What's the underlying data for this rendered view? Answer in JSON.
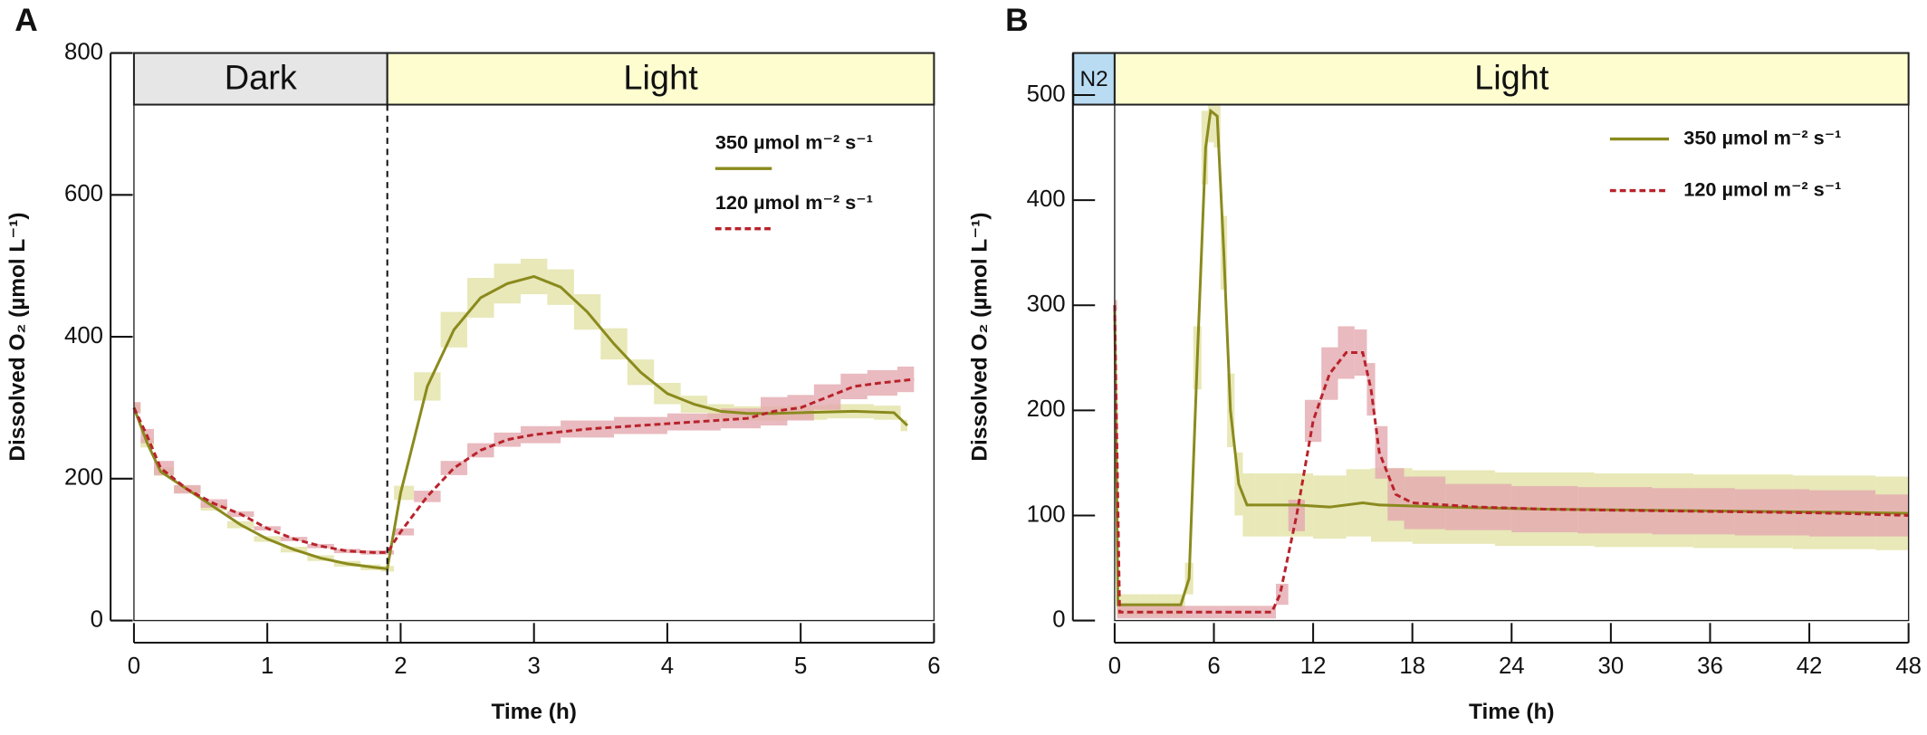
{
  "chart_data": [
    {
      "type": "line",
      "panel": "A",
      "xlabel": "Time (h)",
      "ylabel": "Dissolved O₂ (µmol L⁻¹)",
      "xlim": [
        0,
        6
      ],
      "xticks": [
        0,
        1,
        2,
        3,
        4,
        5,
        6
      ],
      "ylim": [
        0,
        800
      ],
      "yticks": [
        0,
        200,
        400,
        600,
        800
      ],
      "vline": 1.9,
      "regions": [
        {
          "label": "Dark",
          "start": 0,
          "end": 1.9,
          "color": "#e6e6e6"
        },
        {
          "label": "Light",
          "start": 1.9,
          "end": 6,
          "color": "#fdfdd0"
        }
      ],
      "series": [
        {
          "name": "350 µmol m⁻² s⁻¹",
          "color": "#8a8a1e",
          "band_color": "#e2e2a6",
          "dash": false,
          "x": [
            0,
            0.1,
            0.2,
            0.4,
            0.6,
            0.8,
            1.0,
            1.2,
            1.4,
            1.6,
            1.8,
            1.9,
            2.0,
            2.2,
            2.4,
            2.6,
            2.8,
            3.0,
            3.2,
            3.4,
            3.6,
            3.8,
            4.0,
            4.2,
            4.4,
            4.6,
            4.8,
            5.0,
            5.4,
            5.7,
            5.8
          ],
          "values": [
            300,
            250,
            210,
            185,
            160,
            135,
            115,
            100,
            88,
            80,
            75,
            73,
            180,
            330,
            410,
            455,
            475,
            485,
            470,
            435,
            390,
            350,
            320,
            305,
            295,
            292,
            292,
            293,
            295,
            293,
            275
          ],
          "errors": [
            6,
            6,
            6,
            5,
            5,
            5,
            4,
            4,
            4,
            4,
            4,
            4,
            10,
            20,
            25,
            28,
            28,
            25,
            25,
            25,
            22,
            18,
            15,
            12,
            10,
            10,
            10,
            10,
            10,
            10,
            8
          ]
        },
        {
          "name": "120 µmol m⁻² s⁻¹",
          "color": "#b8232b",
          "band_color": "#e4a9af",
          "dash": true,
          "x": [
            0,
            0.1,
            0.2,
            0.4,
            0.6,
            0.8,
            1.0,
            1.2,
            1.4,
            1.6,
            1.8,
            1.9,
            2.0,
            2.2,
            2.4,
            2.6,
            2.8,
            3.0,
            3.4,
            3.8,
            4.2,
            4.6,
            4.8,
            5.0,
            5.2,
            5.4,
            5.6,
            5.85
          ],
          "values": [
            300,
            260,
            215,
            185,
            165,
            150,
            130,
            115,
            105,
            98,
            96,
            96,
            125,
            175,
            215,
            240,
            255,
            262,
            270,
            275,
            280,
            285,
            295,
            300,
            315,
            330,
            335,
            340
          ],
          "errors": [
            8,
            10,
            10,
            6,
            6,
            4,
            3,
            3,
            3,
            3,
            3,
            3,
            5,
            8,
            10,
            10,
            10,
            12,
            12,
            12,
            12,
            14,
            20,
            18,
            18,
            18,
            18,
            18
          ]
        }
      ]
    },
    {
      "type": "line",
      "panel": "B",
      "xlabel": "Time (h)",
      "ylabel": "Dissolved O₂ (µmol L⁻¹)",
      "xlim": [
        0,
        48
      ],
      "xticks": [
        0,
        6,
        12,
        18,
        24,
        30,
        36,
        42,
        48
      ],
      "ylim": [
        0,
        540
      ],
      "yticks": [
        0,
        100,
        200,
        300,
        400,
        500
      ],
      "regions": [
        {
          "label": "N2",
          "start": -2.5,
          "end": 0,
          "color": "#b9dcf3"
        },
        {
          "label": "Light",
          "start": 0,
          "end": 48,
          "color": "#fdfdd0"
        }
      ],
      "series": [
        {
          "name": "350 µmol m⁻² s⁻¹",
          "color": "#8a8a1e",
          "band_color": "#e2e2a6",
          "dash": false,
          "x": [
            0,
            0.2,
            1,
            2,
            3,
            4,
            4.5,
            5,
            5.5,
            5.8,
            6.2,
            6.6,
            7,
            7.5,
            8,
            9,
            11,
            13,
            15,
            16,
            20,
            26,
            32,
            38,
            44,
            48
          ],
          "values": [
            300,
            15,
            15,
            15,
            15,
            15,
            40,
            250,
            450,
            485,
            480,
            350,
            200,
            130,
            110,
            110,
            110,
            108,
            112,
            110,
            108,
            106,
            105,
            104,
            103,
            102
          ],
          "errors": [
            5,
            10,
            10,
            10,
            10,
            10,
            15,
            30,
            35,
            30,
            30,
            35,
            35,
            30,
            30,
            30,
            30,
            30,
            32,
            35,
            35,
            35,
            35,
            35,
            35,
            35
          ]
        },
        {
          "name": "120 µmol m⁻² s⁻¹",
          "color": "#b8232b",
          "band_color": "#e4a9af",
          "dash": true,
          "x": [
            0,
            0.3,
            2,
            5,
            8,
            9.5,
            10,
            11,
            12,
            13,
            14,
            15,
            15.5,
            16,
            17,
            18,
            22,
            26,
            30,
            35,
            40,
            44,
            48
          ],
          "values": [
            300,
            8,
            8,
            8,
            8,
            8,
            25,
            100,
            190,
            235,
            255,
            255,
            220,
            160,
            120,
            112,
            108,
            106,
            105,
            104,
            103,
            102,
            100
          ],
          "errors": [
            5,
            6,
            6,
            6,
            6,
            6,
            10,
            15,
            20,
            25,
            25,
            22,
            25,
            25,
            25,
            25,
            22,
            22,
            22,
            22,
            22,
            22,
            20
          ]
        }
      ]
    }
  ]
}
